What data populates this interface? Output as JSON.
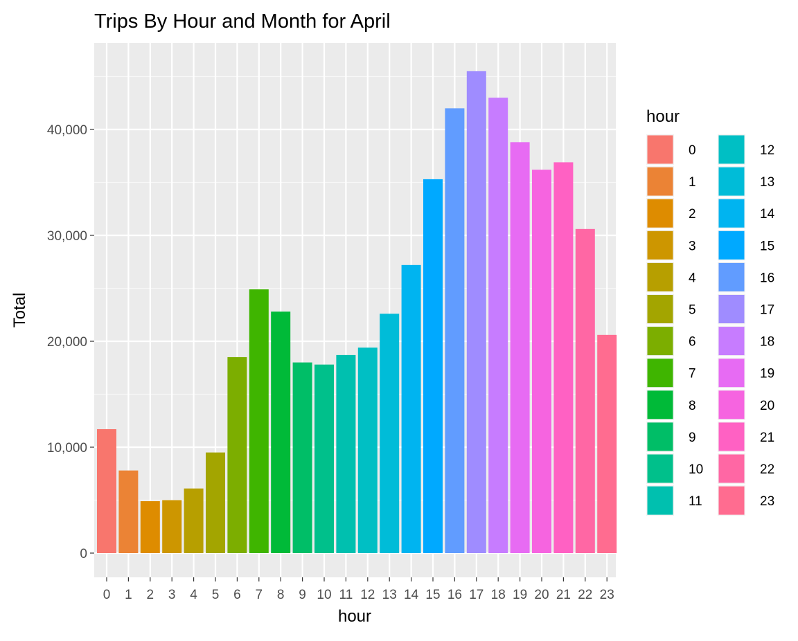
{
  "chart_data": {
    "type": "bar",
    "title": "Trips By Hour and Month for April",
    "xlabel": "hour",
    "ylabel": "Total",
    "categories": [
      "0",
      "1",
      "2",
      "3",
      "4",
      "5",
      "6",
      "7",
      "8",
      "9",
      "10",
      "11",
      "12",
      "13",
      "14",
      "15",
      "16",
      "17",
      "18",
      "19",
      "20",
      "21",
      "22",
      "23"
    ],
    "values": [
      11700,
      7800,
      4900,
      5000,
      6100,
      9500,
      18500,
      24900,
      22800,
      18000,
      17800,
      18700,
      19400,
      22600,
      27200,
      35300,
      42000,
      45500,
      43000,
      38800,
      36200,
      36900,
      30600,
      20600
    ],
    "colors": [
      "#F8766D",
      "#EB8335",
      "#DE8C00",
      "#CD9600",
      "#B79F00",
      "#A3A500",
      "#7CAE00",
      "#3FB500",
      "#00BA38",
      "#00BE67",
      "#00C08B",
      "#00C0AF",
      "#00BFC4",
      "#00BCD8",
      "#00B4F0",
      "#00A9FF",
      "#619CFF",
      "#9F8CFF",
      "#C77CFF",
      "#E76BF3",
      "#F664E0",
      "#FF61C3",
      "#FF67A4",
      "#FF6C90"
    ],
    "ylim": [
      0,
      48000
    ],
    "yticks": [
      0,
      10000,
      20000,
      30000,
      40000
    ],
    "ytick_labels": [
      "0",
      "10,000",
      "20,000",
      "30,000",
      "40,000"
    ],
    "grid": true,
    "legend": {
      "title": "hour",
      "placement": "right",
      "columns": 2
    }
  }
}
